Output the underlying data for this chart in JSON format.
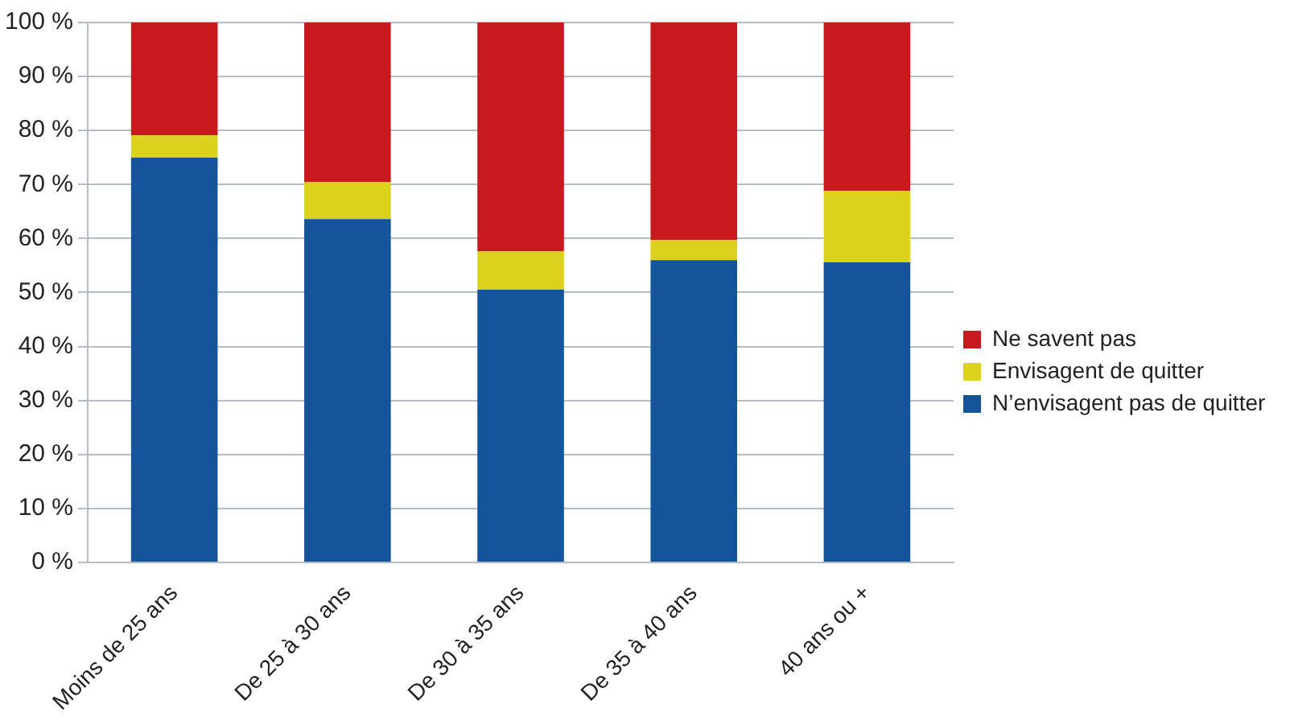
{
  "chart_data": {
    "type": "bar",
    "stacked": true,
    "categories": [
      "Moins de 25 ans",
      "De 25 à 30 ans",
      "De 30 à 35 ans",
      "De 35 à 40 ans",
      "40 ans ou +"
    ],
    "series": [
      {
        "name": "N’envisagent pas de quitter",
        "color": "#15539a",
        "values": [
          75,
          63.6,
          50.5,
          56,
          55.6
        ]
      },
      {
        "name": "Envisagent de quitter",
        "color": "#dcd21e",
        "values": [
          4.1,
          6.8,
          7.1,
          3.7,
          13.2
        ]
      },
      {
        "name": "Ne savent pas",
        "color": "#c8191e",
        "values": [
          20.9,
          29.6,
          42.4,
          40.3,
          31.2
        ]
      }
    ],
    "ylim": [
      0,
      100
    ],
    "yticks": [
      {
        "value": 0,
        "label": "0 %"
      },
      {
        "value": 10,
        "label": "10 %"
      },
      {
        "value": 20,
        "label": "20 %"
      },
      {
        "value": 30,
        "label": "30 %"
      },
      {
        "value": 40,
        "label": "40 %"
      },
      {
        "value": 50,
        "label": "50 %"
      },
      {
        "value": 60,
        "label": "60 %"
      },
      {
        "value": 70,
        "label": "70 %"
      },
      {
        "value": 80,
        "label": "80 %"
      },
      {
        "value": 90,
        "label": "90 %"
      },
      {
        "value": 100,
        "label": "100 %"
      }
    ],
    "grid": "y",
    "legend": "right"
  }
}
